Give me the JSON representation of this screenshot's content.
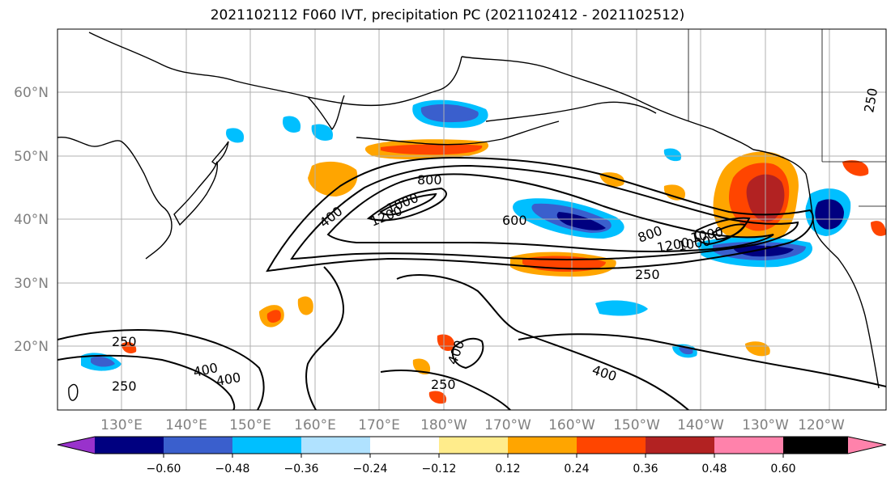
{
  "title": "2021102112 F060 IVT, precipitation PC (2021102412 - 2021102512)",
  "map": {
    "lat_labels": [
      "60°N",
      "50°N",
      "40°N",
      "30°N",
      "20°N"
    ],
    "lon_labels": [
      "130°E",
      "140°E",
      "150°E",
      "160°E",
      "170°E",
      "180°W",
      "170°W",
      "160°W",
      "150°W",
      "140°W",
      "130°W",
      "120°W"
    ],
    "ivt_contour_levels": [
      250,
      400,
      600,
      800,
      1000,
      1200
    ],
    "contour_labels": [
      "800",
      "400",
      "1200",
      "1000",
      "600",
      "800",
      "1200",
      "1000",
      "1000",
      "250",
      "250",
      "250",
      "400",
      "400",
      "400",
      "250",
      "400",
      "250"
    ]
  },
  "colorbar": {
    "tick_labels": [
      "−0.60",
      "−0.48",
      "−0.36",
      "−0.24",
      "−0.12",
      "0.12",
      "0.24",
      "0.36",
      "0.48",
      "0.60"
    ],
    "colors": [
      "#9932cc",
      "#000080",
      "#3a5fcd",
      "#00bfff",
      "#b0e2ff",
      "#ffffff",
      "#ffec8b",
      "#ffa500",
      "#ff4500",
      "#b22222",
      "#ff82ab"
    ]
  }
}
